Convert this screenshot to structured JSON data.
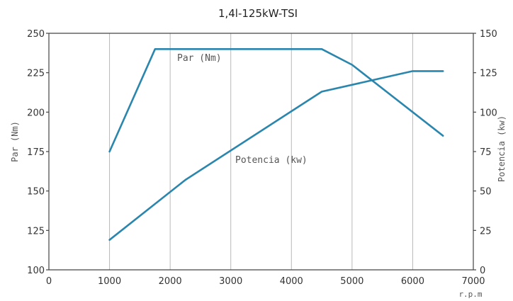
{
  "chart_data": {
    "type": "line",
    "title": "1,4l-125kW-TSI",
    "xlabel": "r.p.m",
    "ylabel_left": "Par (Nm)",
    "ylabel_right": "Potencia (kw)",
    "xlim": [
      0,
      7000
    ],
    "ylim_left": [
      100,
      250
    ],
    "ylim_right": [
      0,
      150
    ],
    "x_ticks": [
      "0",
      "1000",
      "2000",
      "3000",
      "4000",
      "5000",
      "6000",
      "7000"
    ],
    "y_left_ticks": [
      "100",
      "125",
      "150",
      "175",
      "200",
      "225",
      "250"
    ],
    "y_right_ticks": [
      "0",
      "25",
      "50",
      "75",
      "100",
      "125",
      "150"
    ],
    "grid": "vertical",
    "series": [
      {
        "name": "Par (Nm)",
        "axis": "left",
        "color": "#2b86ad",
        "points": [
          [
            1000,
            175
          ],
          [
            1750,
            240
          ],
          [
            4500,
            240
          ],
          [
            5000,
            230
          ],
          [
            6500,
            185
          ]
        ]
      },
      {
        "name": "Potencia (kw)",
        "axis": "right",
        "color": "#2b86ad",
        "points": [
          [
            1000,
            19
          ],
          [
            2250,
            57
          ],
          [
            4500,
            113
          ],
          [
            6000,
            126
          ],
          [
            6500,
            126
          ]
        ]
      }
    ]
  }
}
